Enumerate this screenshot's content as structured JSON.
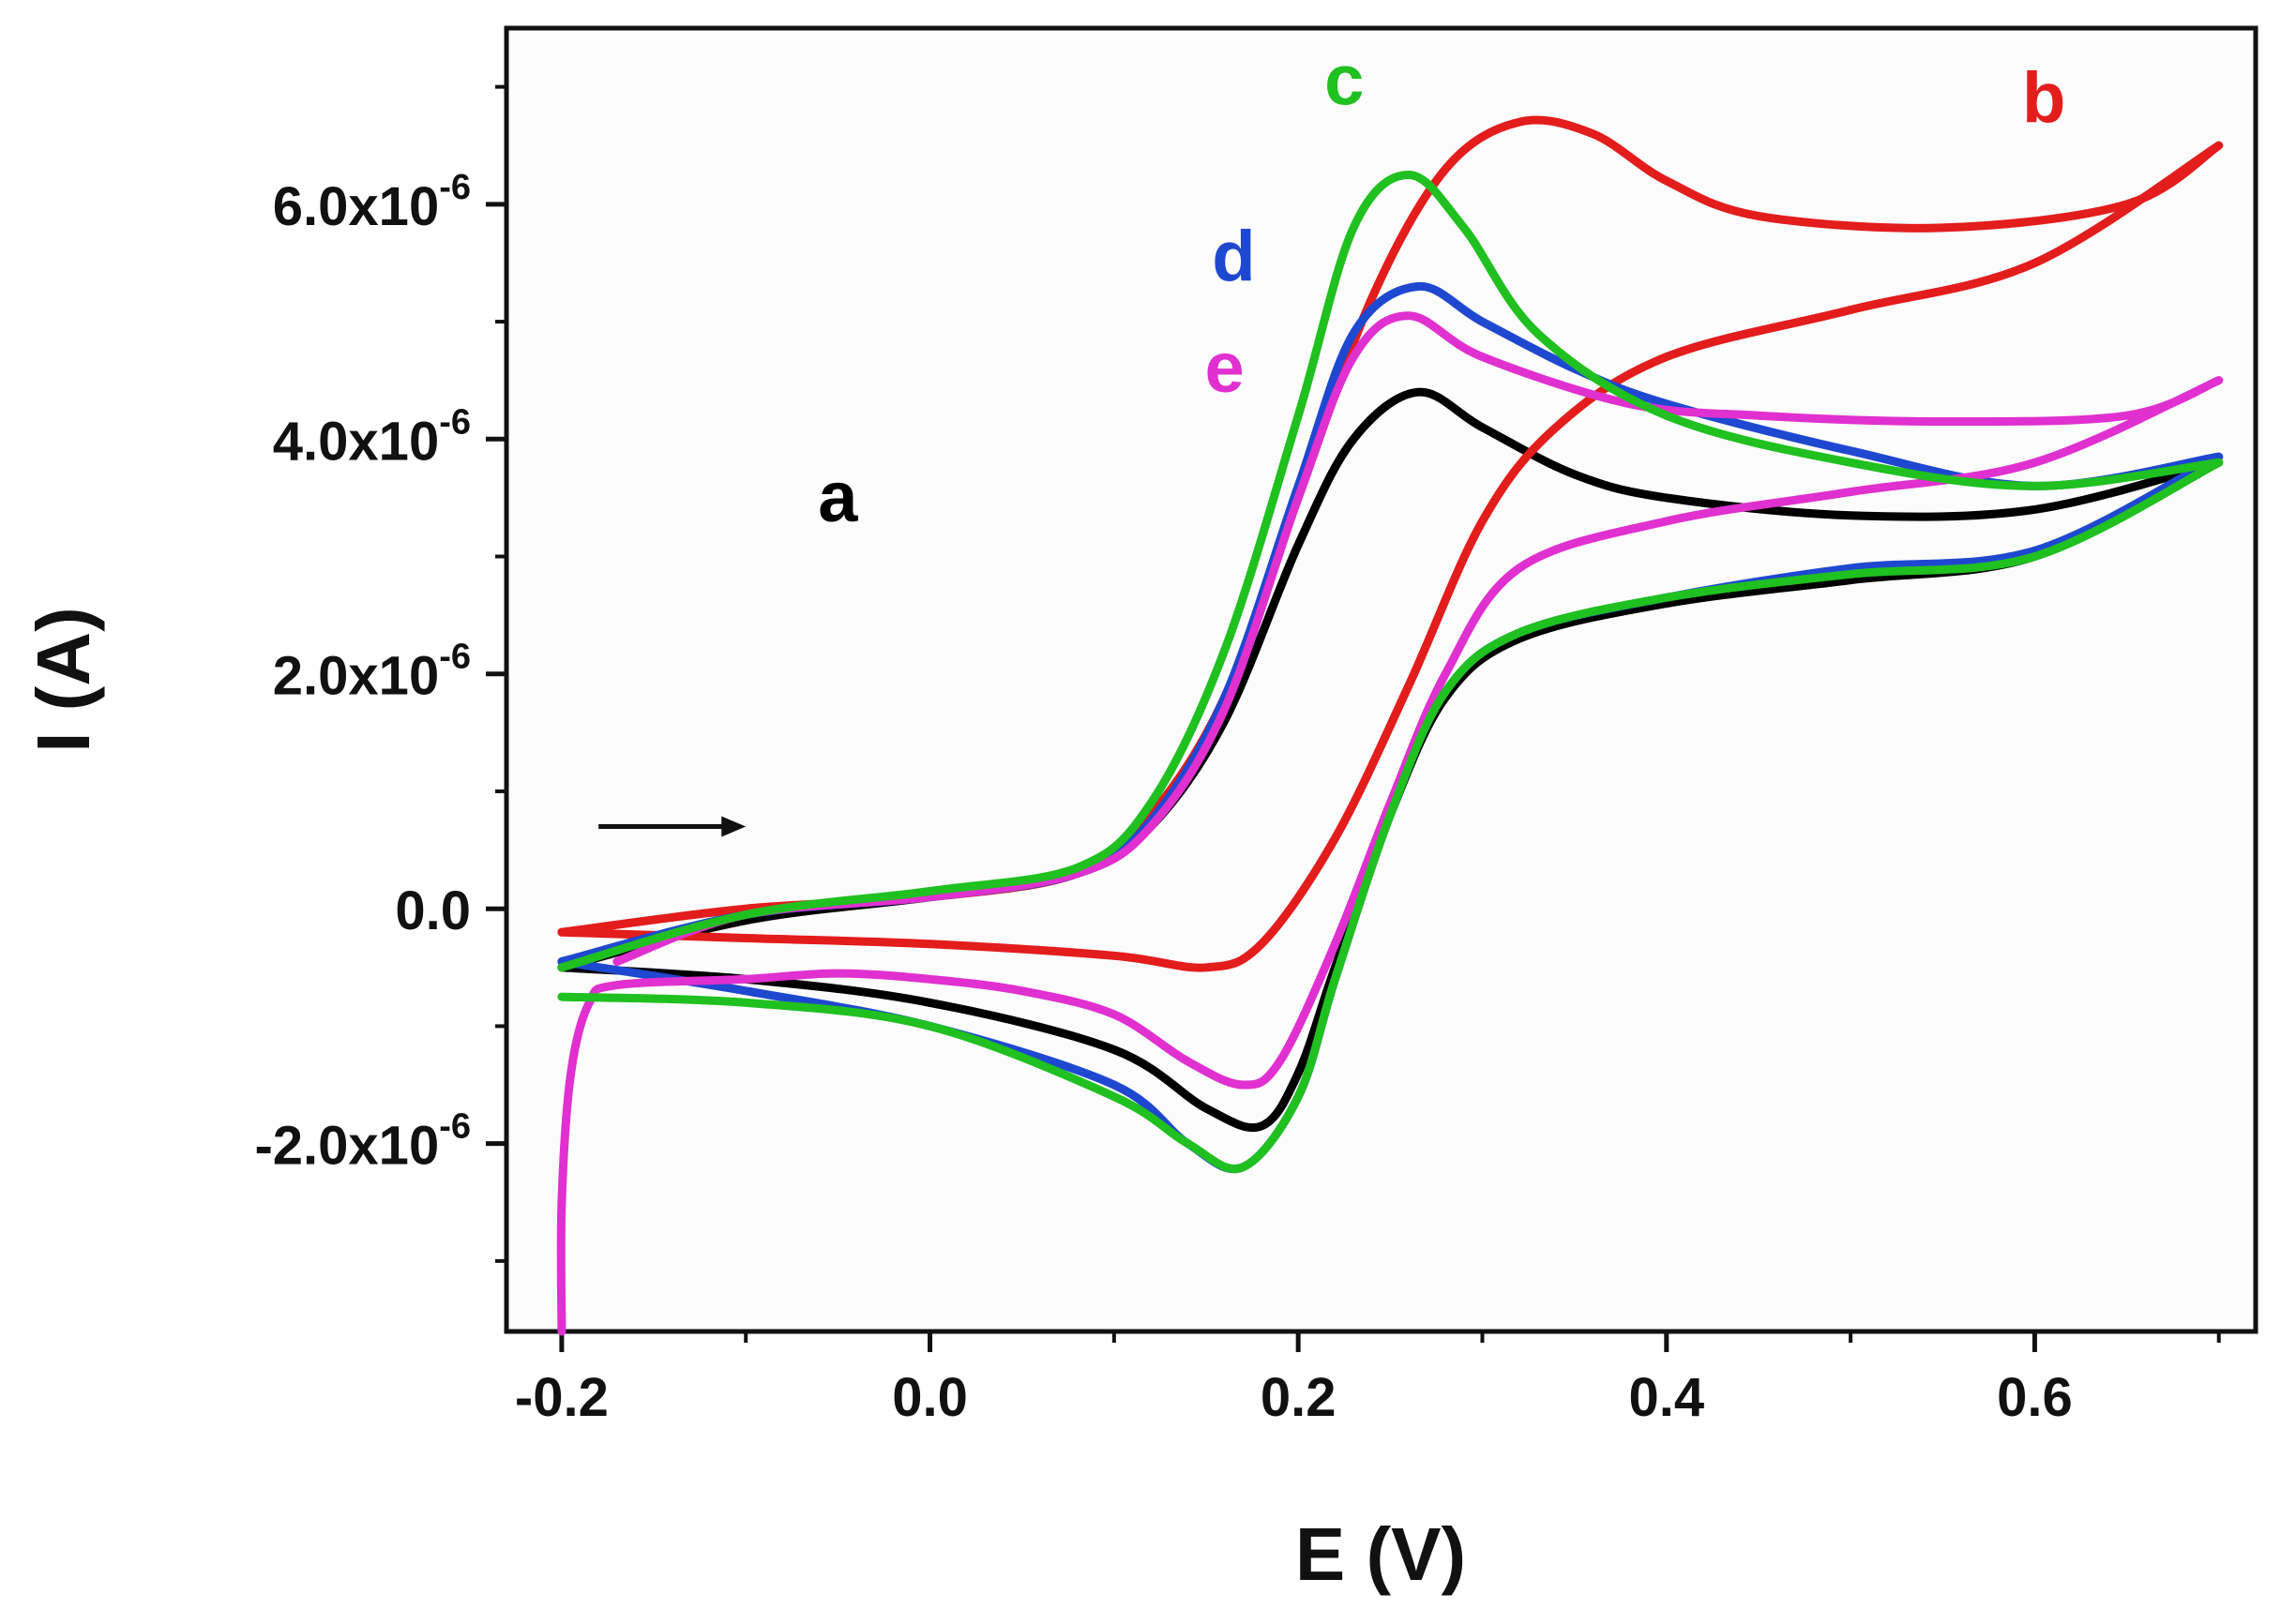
{
  "chart_data": {
    "type": "line",
    "title": "",
    "xlabel": "E (V)",
    "ylabel": "I (A)",
    "xlim": [
      -0.23,
      0.72
    ],
    "ylim": [
      -3.6e-06,
      7.5e-06
    ],
    "x_ticks": [
      {
        "value": -0.2,
        "label": "-0.2"
      },
      {
        "value": 0.0,
        "label": "0.0"
      },
      {
        "value": 0.2,
        "label": "0.2"
      },
      {
        "value": 0.4,
        "label": "0.4"
      },
      {
        "value": 0.6,
        "label": "0.6"
      }
    ],
    "y_ticks": [
      {
        "value": -2e-06,
        "mantissa": "-2.0x10",
        "exponent": "-6"
      },
      {
        "value": 0.0,
        "mantissa": "0.0",
        "exponent": ""
      },
      {
        "value": 2e-06,
        "mantissa": "2.0x10",
        "exponent": "-6"
      },
      {
        "value": 4e-06,
        "mantissa": "4.0x10",
        "exponent": "-6"
      },
      {
        "value": 6e-06,
        "mantissa": "6.0x10",
        "exponent": "-6"
      }
    ],
    "grid": false,
    "annotations": [
      {
        "type": "arrow",
        "direction": "right",
        "meaning": "scan direction",
        "from": [
          -0.18,
          7e-07
        ],
        "to": [
          -0.1,
          7e-07
        ]
      }
    ],
    "series": [
      {
        "name": "a",
        "color": "#000000",
        "label_at": [
          -0.05,
          3.3e-06
        ],
        "forward": [
          [
            -0.2,
            -5e-07
          ],
          [
            -0.1,
            -1e-07
          ],
          [
            0.0,
            1e-07
          ],
          [
            0.08,
            3e-07
          ],
          [
            0.12,
            7e-07
          ],
          [
            0.16,
            1.6e-06
          ],
          [
            0.2,
            3.1e-06
          ],
          [
            0.23,
            4e-06
          ],
          [
            0.265,
            4.4e-06
          ],
          [
            0.3,
            4.1e-06
          ],
          [
            0.35,
            3.7e-06
          ],
          [
            0.4,
            3.5e-06
          ],
          [
            0.5,
            3.35e-06
          ],
          [
            0.6,
            3.4e-06
          ],
          [
            0.7,
            3.8e-06
          ]
        ],
        "reverse": [
          [
            0.7,
            3.8e-06
          ],
          [
            0.6,
            3e-06
          ],
          [
            0.5,
            2.8e-06
          ],
          [
            0.4,
            2.6e-06
          ],
          [
            0.32,
            2.3e-06
          ],
          [
            0.28,
            1.8e-06
          ],
          [
            0.25,
            8e-07
          ],
          [
            0.22,
            -5e-07
          ],
          [
            0.2,
            -1.4e-06
          ],
          [
            0.18,
            -1.85e-06
          ],
          [
            0.15,
            -1.7e-06
          ],
          [
            0.1,
            -1.2e-06
          ],
          [
            0.0,
            -8e-07
          ],
          [
            -0.1,
            -6e-07
          ],
          [
            -0.2,
            -5e-07
          ]
        ]
      },
      {
        "name": "b",
        "color": "#e31c1c",
        "label_at": [
          0.605,
          6.7e-06
        ],
        "forward": [
          [
            -0.2,
            -2e-07
          ],
          [
            -0.1,
            0.0
          ],
          [
            0.0,
            1e-07
          ],
          [
            0.08,
            3e-07
          ],
          [
            0.12,
            8e-07
          ],
          [
            0.16,
            1.8e-06
          ],
          [
            0.2,
            3.5e-06
          ],
          [
            0.24,
            5.2e-06
          ],
          [
            0.28,
            6.3e-06
          ],
          [
            0.32,
            6.7e-06
          ],
          [
            0.36,
            6.6e-06
          ],
          [
            0.4,
            6.2e-06
          ],
          [
            0.45,
            5.9e-06
          ],
          [
            0.55,
            5.8e-06
          ],
          [
            0.65,
            6e-06
          ],
          [
            0.7,
            6.5e-06
          ]
        ],
        "reverse": [
          [
            0.7,
            6.5e-06
          ],
          [
            0.6,
            5.5e-06
          ],
          [
            0.5,
            5.1e-06
          ],
          [
            0.4,
            4.7e-06
          ],
          [
            0.34,
            4.1e-06
          ],
          [
            0.3,
            3.3e-06
          ],
          [
            0.26,
            1.9e-06
          ],
          [
            0.22,
            6e-07
          ],
          [
            0.18,
            -3e-07
          ],
          [
            0.15,
            -5e-07
          ],
          [
            0.1,
            -4e-07
          ],
          [
            0.0,
            -3e-07
          ],
          [
            -0.1,
            -2.5e-07
          ],
          [
            -0.2,
            -2e-07
          ]
        ]
      },
      {
        "name": "c",
        "color": "#1fc01f",
        "label_at": [
          0.225,
          6.85e-06
        ],
        "forward": [
          [
            -0.2,
            -5e-07
          ],
          [
            -0.1,
            -5e-08
          ],
          [
            0.0,
            1.5e-07
          ],
          [
            0.08,
            3.5e-07
          ],
          [
            0.12,
            9e-07
          ],
          [
            0.16,
            2.2e-06
          ],
          [
            0.2,
            4.2e-06
          ],
          [
            0.23,
            5.8e-06
          ],
          [
            0.26,
            6.25e-06
          ],
          [
            0.29,
            5.8e-06
          ],
          [
            0.33,
            4.9e-06
          ],
          [
            0.4,
            4.2e-06
          ],
          [
            0.5,
            3.8e-06
          ],
          [
            0.6,
            3.6e-06
          ],
          [
            0.7,
            3.8e-06
          ]
        ],
        "reverse": [
          [
            0.7,
            3.8e-06
          ],
          [
            0.6,
            3e-06
          ],
          [
            0.5,
            2.85e-06
          ],
          [
            0.4,
            2.65e-06
          ],
          [
            0.32,
            2.35e-06
          ],
          [
            0.28,
            1.85e-06
          ],
          [
            0.25,
            8e-07
          ],
          [
            0.22,
            -6e-07
          ],
          [
            0.2,
            -1.6e-06
          ],
          [
            0.17,
            -2.2e-06
          ],
          [
            0.14,
            -2e-06
          ],
          [
            0.1,
            -1.6e-06
          ],
          [
            0.0,
            -1e-06
          ],
          [
            -0.1,
            -8e-07
          ],
          [
            -0.2,
            -7.5e-07
          ]
        ]
      },
      {
        "name": "d",
        "color": "#1f48d0",
        "label_at": [
          0.165,
          5.35e-06
        ],
        "forward": [
          [
            -0.2,
            -4.5e-07
          ],
          [
            -0.1,
            -5e-08
          ],
          [
            0.0,
            1e-07
          ],
          [
            0.08,
            3e-07
          ],
          [
            0.12,
            7.5e-07
          ],
          [
            0.16,
            1.8e-06
          ],
          [
            0.2,
            3.6e-06
          ],
          [
            0.23,
            4.9e-06
          ],
          [
            0.265,
            5.3e-06
          ],
          [
            0.3,
            5e-06
          ],
          [
            0.35,
            4.6e-06
          ],
          [
            0.4,
            4.3e-06
          ],
          [
            0.5,
            3.9e-06
          ],
          [
            0.6,
            3.6e-06
          ],
          [
            0.7,
            3.85e-06
          ]
        ],
        "reverse": [
          [
            0.7,
            3.85e-06
          ],
          [
            0.6,
            3.05e-06
          ],
          [
            0.5,
            2.9e-06
          ],
          [
            0.4,
            2.65e-06
          ],
          [
            0.32,
            2.35e-06
          ],
          [
            0.28,
            1.85e-06
          ],
          [
            0.25,
            8e-07
          ],
          [
            0.22,
            -6e-07
          ],
          [
            0.2,
            -1.6e-06
          ],
          [
            0.17,
            -2.2e-06
          ],
          [
            0.14,
            -2e-06
          ],
          [
            0.1,
            -1.5e-06
          ],
          [
            0.0,
            -1e-06
          ],
          [
            -0.1,
            -7e-07
          ],
          [
            -0.2,
            -4.5e-07
          ]
        ]
      },
      {
        "name": "e",
        "color": "#e030d0",
        "label_at": [
          0.16,
          4.4e-06
        ],
        "forward": [
          [
            -0.2,
            -3.6e-06
          ],
          [
            -0.2,
            -2.5e-06
          ],
          [
            -0.195,
            -1.4e-06
          ],
          [
            -0.185,
            -8e-07
          ],
          [
            -0.17,
            -6.5e-07
          ],
          [
            -0.1,
            -6e-07
          ],
          [
            -0.05,
            -5.5e-07
          ],
          [
            0.0,
            -6e-07
          ],
          [
            0.05,
            -7e-07
          ],
          [
            0.1,
            -9e-07
          ],
          [
            0.14,
            -1.3e-06
          ],
          [
            0.17,
            -1.5e-06
          ],
          [
            0.19,
            -1.3e-06
          ],
          [
            0.22,
            -3e-07
          ],
          [
            0.25,
            9e-07
          ],
          [
            0.28,
            2e-06
          ],
          [
            0.32,
            2.9e-06
          ],
          [
            0.4,
            3.3e-06
          ],
          [
            0.5,
            3.55e-06
          ],
          [
            0.6,
            3.8e-06
          ],
          [
            0.7,
            4.5e-06
          ]
        ],
        "reverse": [
          [
            0.7,
            4.5e-06
          ],
          [
            0.65,
            4.2e-06
          ],
          [
            0.55,
            4.15e-06
          ],
          [
            0.45,
            4.2e-06
          ],
          [
            0.38,
            4.3e-06
          ],
          [
            0.3,
            4.7e-06
          ],
          [
            0.26,
            5.05e-06
          ],
          [
            0.23,
            4.7e-06
          ],
          [
            0.2,
            3.5e-06
          ],
          [
            0.16,
            1.7e-06
          ],
          [
            0.12,
            7e-07
          ],
          [
            0.08,
            3e-07
          ],
          [
            0.0,
            1e-07
          ],
          [
            -0.1,
            -5e-08
          ],
          [
            -0.17,
            -4.5e-07
          ]
        ]
      }
    ]
  }
}
